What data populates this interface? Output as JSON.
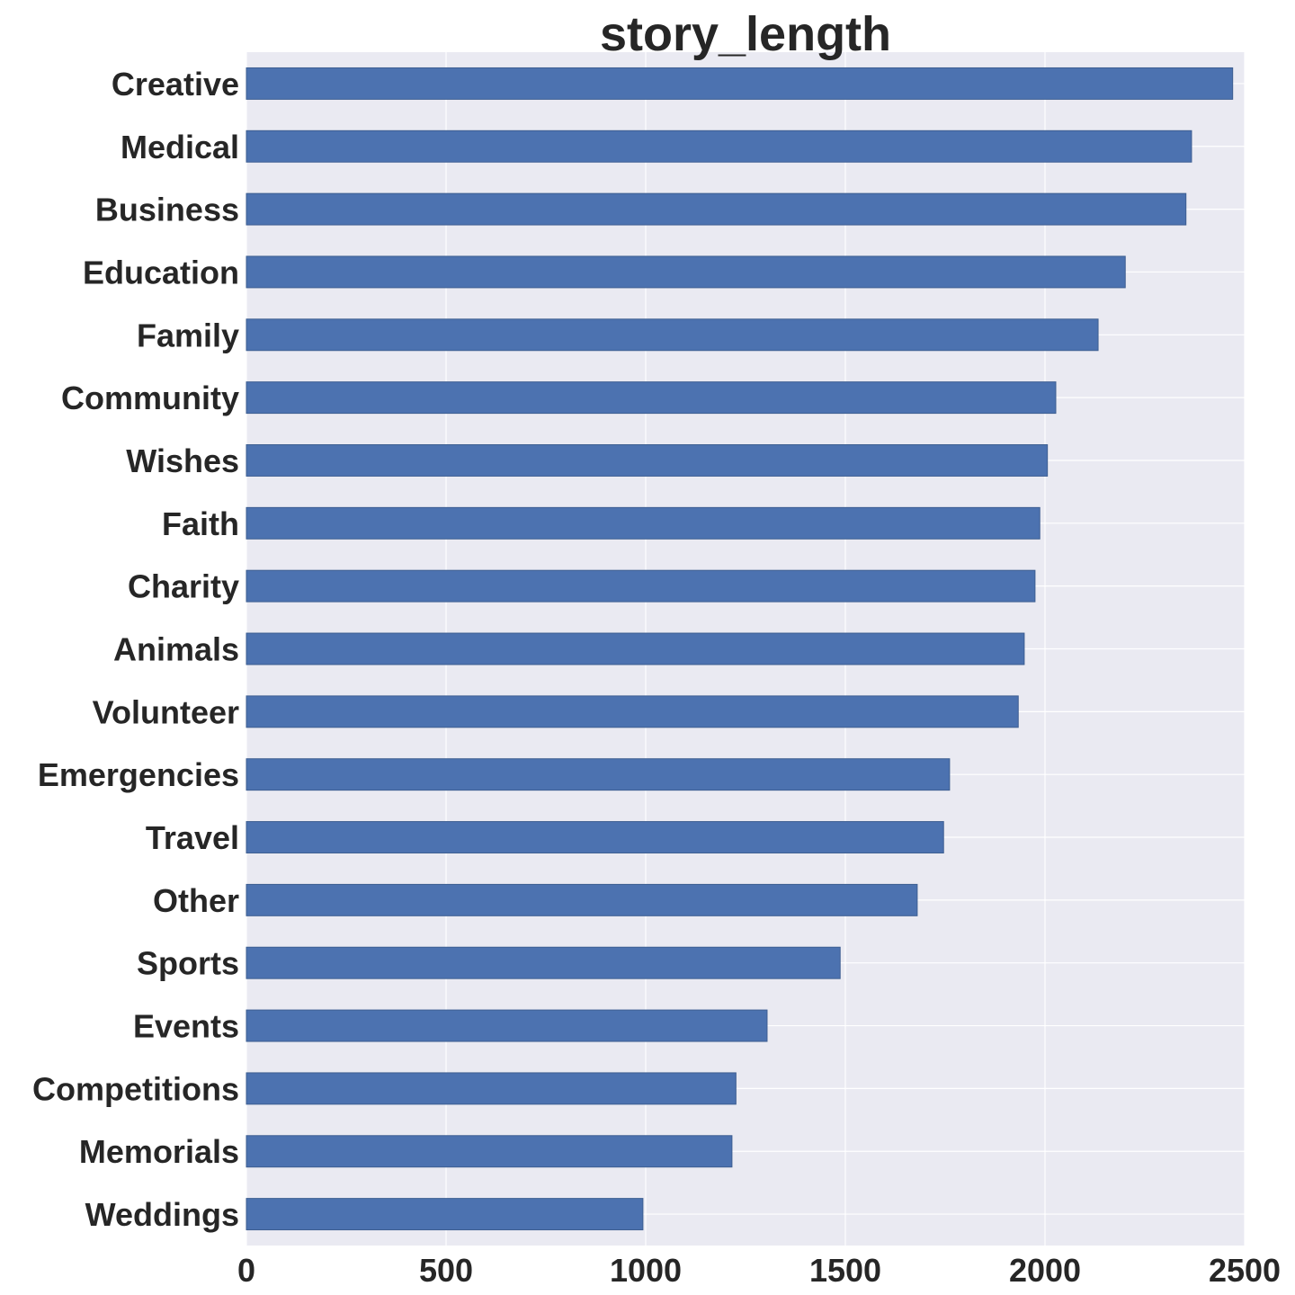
{
  "chart_data": {
    "type": "bar",
    "orientation": "horizontal",
    "title": "story_length",
    "xlabel": "",
    "ylabel": "",
    "xlim": [
      0,
      2500
    ],
    "xticks": [
      0,
      500,
      1000,
      1500,
      2000,
      2500
    ],
    "xtick_labels": [
      "0",
      "500",
      "1000",
      "1500",
      "2000",
      "2500"
    ],
    "grid": true,
    "colors": {
      "bar": "#4c72b0",
      "plot_bg": "#eaeaf2",
      "grid": "#ffffff",
      "text": "#262626"
    },
    "categories": [
      "Creative",
      "Medical",
      "Business",
      "Education",
      "Family",
      "Community",
      "Wishes",
      "Faith",
      "Charity",
      "Animals",
      "Volunteer",
      "Emergencies",
      "Travel",
      "Other",
      "Sports",
      "Events",
      "Competitions",
      "Memorials",
      "Weddings"
    ],
    "values": [
      2470,
      2367,
      2353,
      2201,
      2133,
      2027,
      2006,
      1987,
      1975,
      1948,
      1933,
      1761,
      1746,
      1680,
      1487,
      1304,
      1226,
      1216,
      993
    ]
  }
}
